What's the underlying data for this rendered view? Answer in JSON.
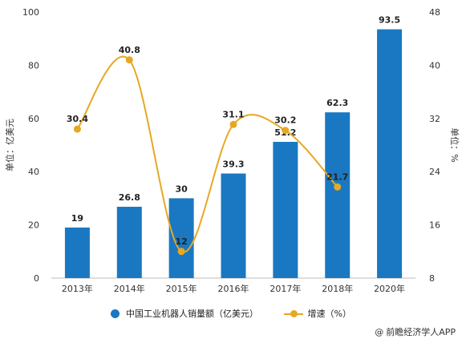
{
  "chart_data": {
    "type": "bar",
    "categories": [
      "2013年",
      "2014年",
      "2015年",
      "2016年",
      "2017年",
      "2018年",
      "2020年"
    ],
    "series": [
      {
        "name": "中国工业机器人销量额（亿美元）",
        "type": "bar",
        "axis": "left",
        "color": "#1a78c2",
        "values": [
          19,
          26.8,
          30,
          39.3,
          51.2,
          62.3,
          93.5
        ],
        "labels": [
          "19",
          "26.8",
          "30",
          "39.3",
          "51.2",
          "62.3",
          "93.5"
        ]
      },
      {
        "name": "增速（%）",
        "type": "line",
        "axis": "right",
        "color": "#e6a823",
        "values": [
          30.4,
          40.8,
          12,
          31.1,
          30.2,
          21.7,
          null
        ],
        "labels": [
          "30.4",
          "40.8",
          "12",
          "31.1",
          "30.2",
          "21.7",
          ""
        ]
      }
    ],
    "ylabel": "单位：亿美元",
    "y2label": "单位：%",
    "ylim": [
      0,
      100
    ],
    "y2lim": [
      8,
      48
    ],
    "yticks": [
      "0",
      "20",
      "40",
      "60",
      "80",
      "100"
    ],
    "y2ticks": [
      "8",
      "16",
      "24",
      "32",
      "40",
      "48"
    ],
    "grid": false,
    "legend_position": "bottom"
  },
  "legend": {
    "bar_label": "中国工业机器人销量额（亿美元）",
    "line_label": "增速（%）"
  },
  "credit": {
    "symbol": "@",
    "text": "前瞻经济学人APP"
  }
}
